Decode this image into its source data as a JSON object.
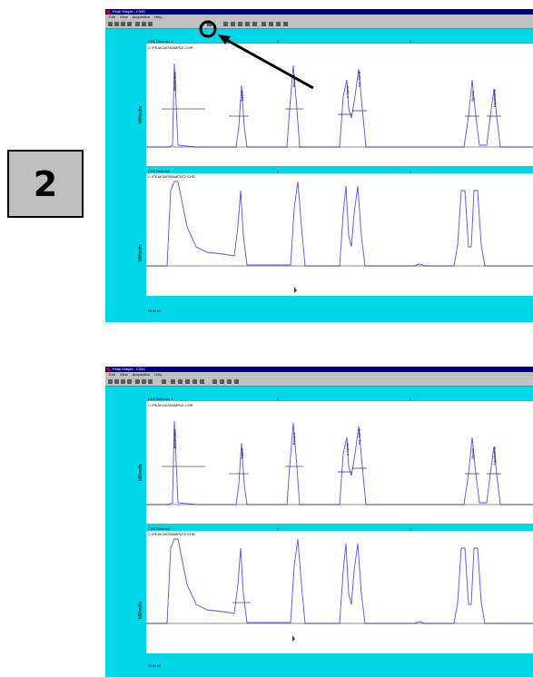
{
  "step": {
    "number": "2"
  },
  "screenshots": [
    {
      "title": "Peak Simple - C340",
      "menus": [
        "Edit",
        "View",
        "Acquisition",
        "Help"
      ],
      "channel_top": {
        "header": "CH1 Detector 1",
        "file": "C:\\PEAK340\\SAMPLE.CHR",
        "axis_label": "Millivolts",
        "peak_labels": [
          "Ethylbenzene",
          "Toluene",
          "Benzene",
          "o-Xylene",
          "m/p-Xylene",
          "Styrene",
          "Naphthalene"
        ]
      },
      "channel_bottom": {
        "header": "CH2 Detector",
        "file": "C:\\PEAK340\\SAMPLE2.CHR",
        "axis_label": "Millivolts"
      },
      "footer": "RUN #3"
    },
    {
      "title": "Peak Simple - C340",
      "menus": [
        "Edit",
        "View",
        "Acquisition",
        "Help"
      ],
      "channel_top": {
        "header": "CH1 Detector 1",
        "file": "C:\\PEAK340\\SAMPLE.CHR",
        "axis_label": "Millivolts",
        "peak_labels": [
          "Ethylbenzene",
          "Toluene",
          "Benzene",
          "o-Xylene",
          "m/p-Xylene",
          "Styrene",
          "Naphthalene"
        ]
      },
      "channel_bottom": {
        "header": "CH2 Detector",
        "file": "C:\\PEAK340\\SAMPLE2.CHR",
        "axis_label": "Millivolts"
      },
      "footer": "RUN #3"
    }
  ],
  "colors": {
    "panel_bg": "#00d8e8",
    "trace": "#5050ff",
    "baseline": "#202020",
    "highlight_ring": "#000000"
  }
}
